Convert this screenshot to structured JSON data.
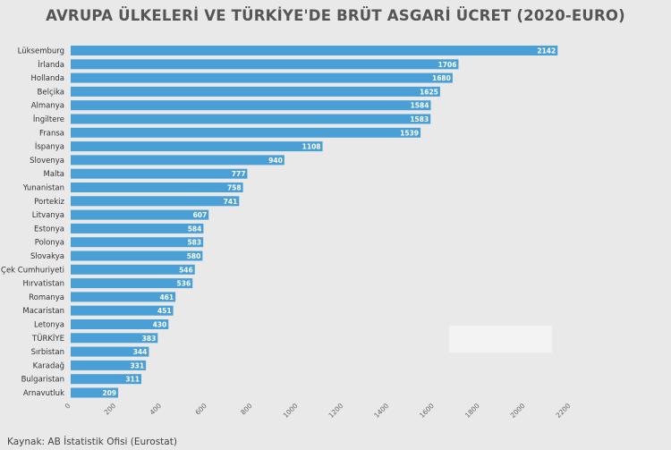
{
  "chart_data": {
    "type": "bar",
    "orientation": "horizontal",
    "title": "AVRUPA ÜLKELERİ VE TÜRKİYE'DE BRÜT ASGARİ ÜCRET (2020-EURO)",
    "source": "Kaynak: AB İstatistik Ofisi (Eurostat)",
    "categories": [
      "Lüksemburg",
      "İrlanda",
      "Hollanda",
      "Belçika",
      "Almanya",
      "İngiltere",
      "Fransa",
      "İspanya",
      "Slovenya",
      "Malta",
      "Yunanistan",
      "Portekiz",
      "Litvanya",
      "Estonya",
      "Polonya",
      "Slovakya",
      "Çek Cumhuriyeti",
      "Hırvatistan",
      "Romanya",
      "Macaristan",
      "Letonya",
      "TÜRKİYE",
      "Sırbistan",
      "Karadağ",
      "Bulgaristan",
      "Arnavutluk"
    ],
    "values": [
      2142,
      1706,
      1680,
      1625,
      1584,
      1583,
      1539,
      1108,
      940,
      777,
      758,
      741,
      607,
      584,
      583,
      580,
      546,
      536,
      461,
      451,
      430,
      383,
      344,
      331,
      311,
      209
    ],
    "x_ticks": [
      0,
      200,
      400,
      600,
      800,
      1000,
      1200,
      1400,
      1600,
      1800,
      2000,
      2200
    ],
    "xlim": [
      0,
      2200
    ],
    "bar_color": "#4a9fd6",
    "label_color": "#ffffff"
  }
}
